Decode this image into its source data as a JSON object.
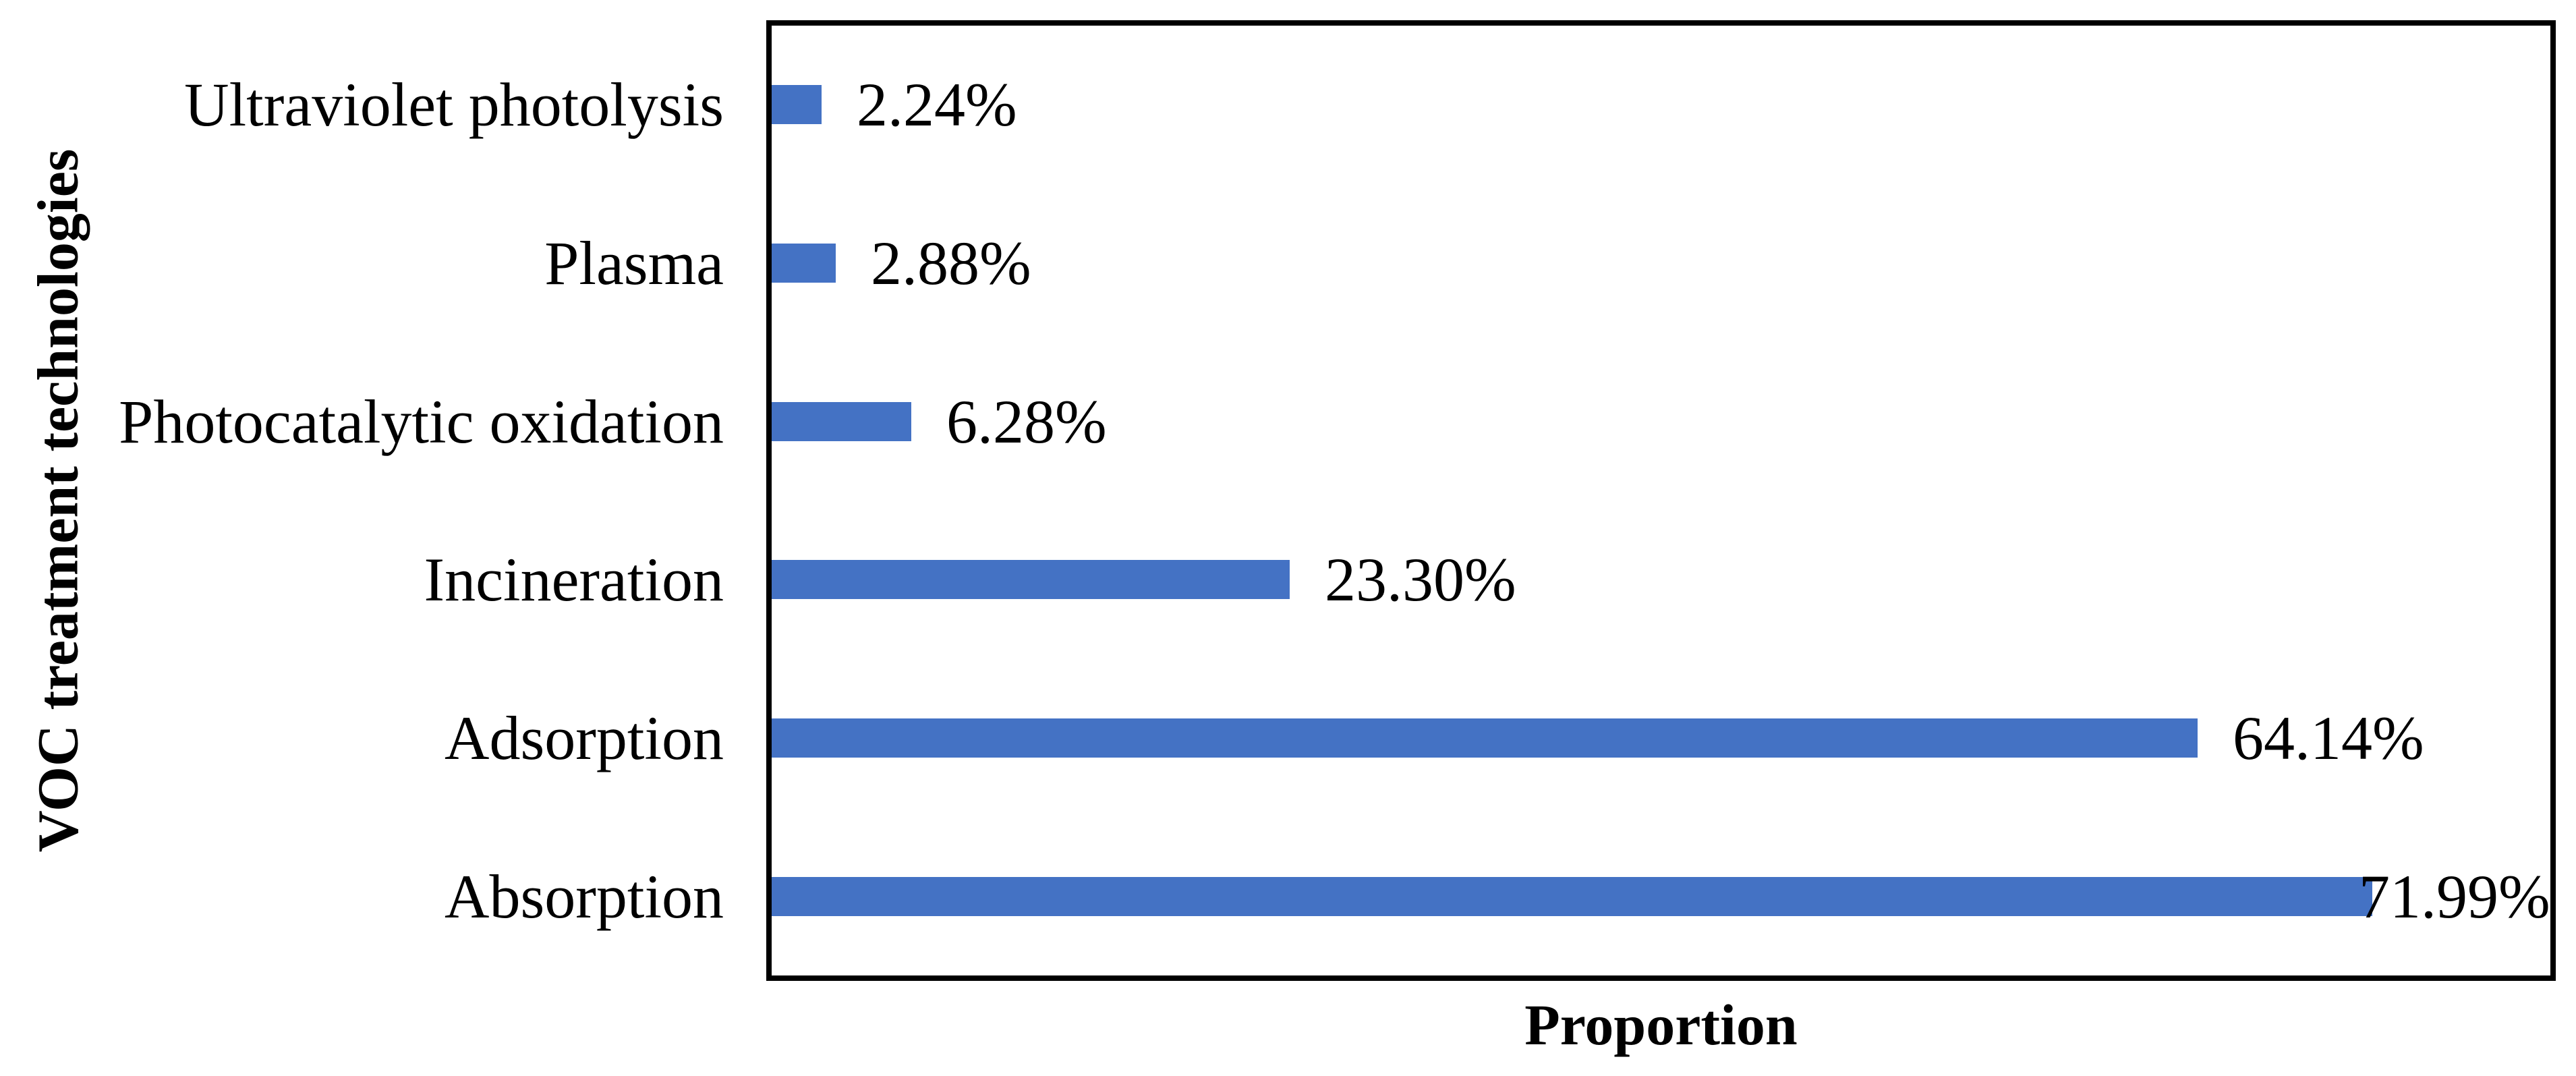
{
  "chart_data": {
    "type": "bar",
    "orientation": "horizontal",
    "xlabel": "Proportion",
    "ylabel": "VOC treatment technologies",
    "categories": [
      "Ultraviolet photolysis",
      "Plasma",
      "Photocatalytic oxidation",
      "Incineration",
      "Adsorption",
      "Absorption"
    ],
    "values": [
      2.24,
      2.88,
      6.28,
      23.3,
      64.14,
      71.99
    ],
    "data_labels": [
      "2.24%",
      "2.88%",
      "6.28%",
      "23.30%",
      "64.14%",
      "71.99%"
    ],
    "xlim": [
      0,
      80
    ],
    "bar_color": "#4472C4",
    "axis_color": "#000000",
    "text_color": "#000000",
    "grid": false,
    "legend": false,
    "x_tick_labels_visible": false
  }
}
